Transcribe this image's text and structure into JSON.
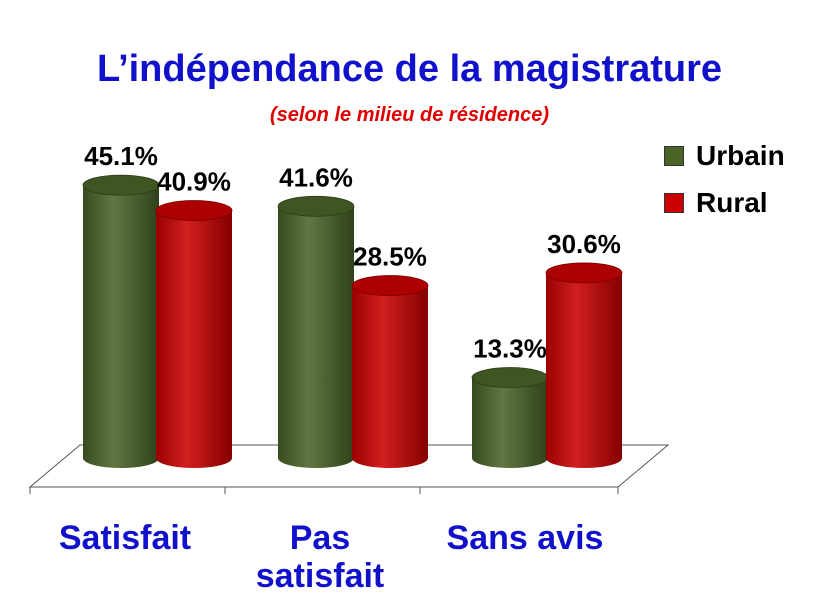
{
  "chart_data": {
    "type": "bar",
    "title": "L’indépendance de la magistrature",
    "subtitle": "(selon le milieu de résidence)",
    "categories": [
      "Satisfait",
      "Pas satisfait",
      "Sans avis"
    ],
    "category_lines": [
      [
        "Satisfait"
      ],
      [
        "Pas",
        "satisfait"
      ],
      [
        "Sans avis"
      ]
    ],
    "series": [
      {
        "name": "Urbain",
        "values": [
          45.1,
          41.6,
          13.3
        ],
        "labels": [
          "45.1%",
          "41.6%",
          "13.3%"
        ],
        "color": "#4a6428"
      },
      {
        "name": "Rural",
        "values": [
          40.9,
          28.5,
          30.6
        ],
        "labels": [
          "40.9%",
          "28.5%",
          "30.6%"
        ],
        "color": "#cc0000"
      }
    ],
    "ylim": [
      0,
      50
    ],
    "legend_position": "top-right",
    "grid": false
  }
}
